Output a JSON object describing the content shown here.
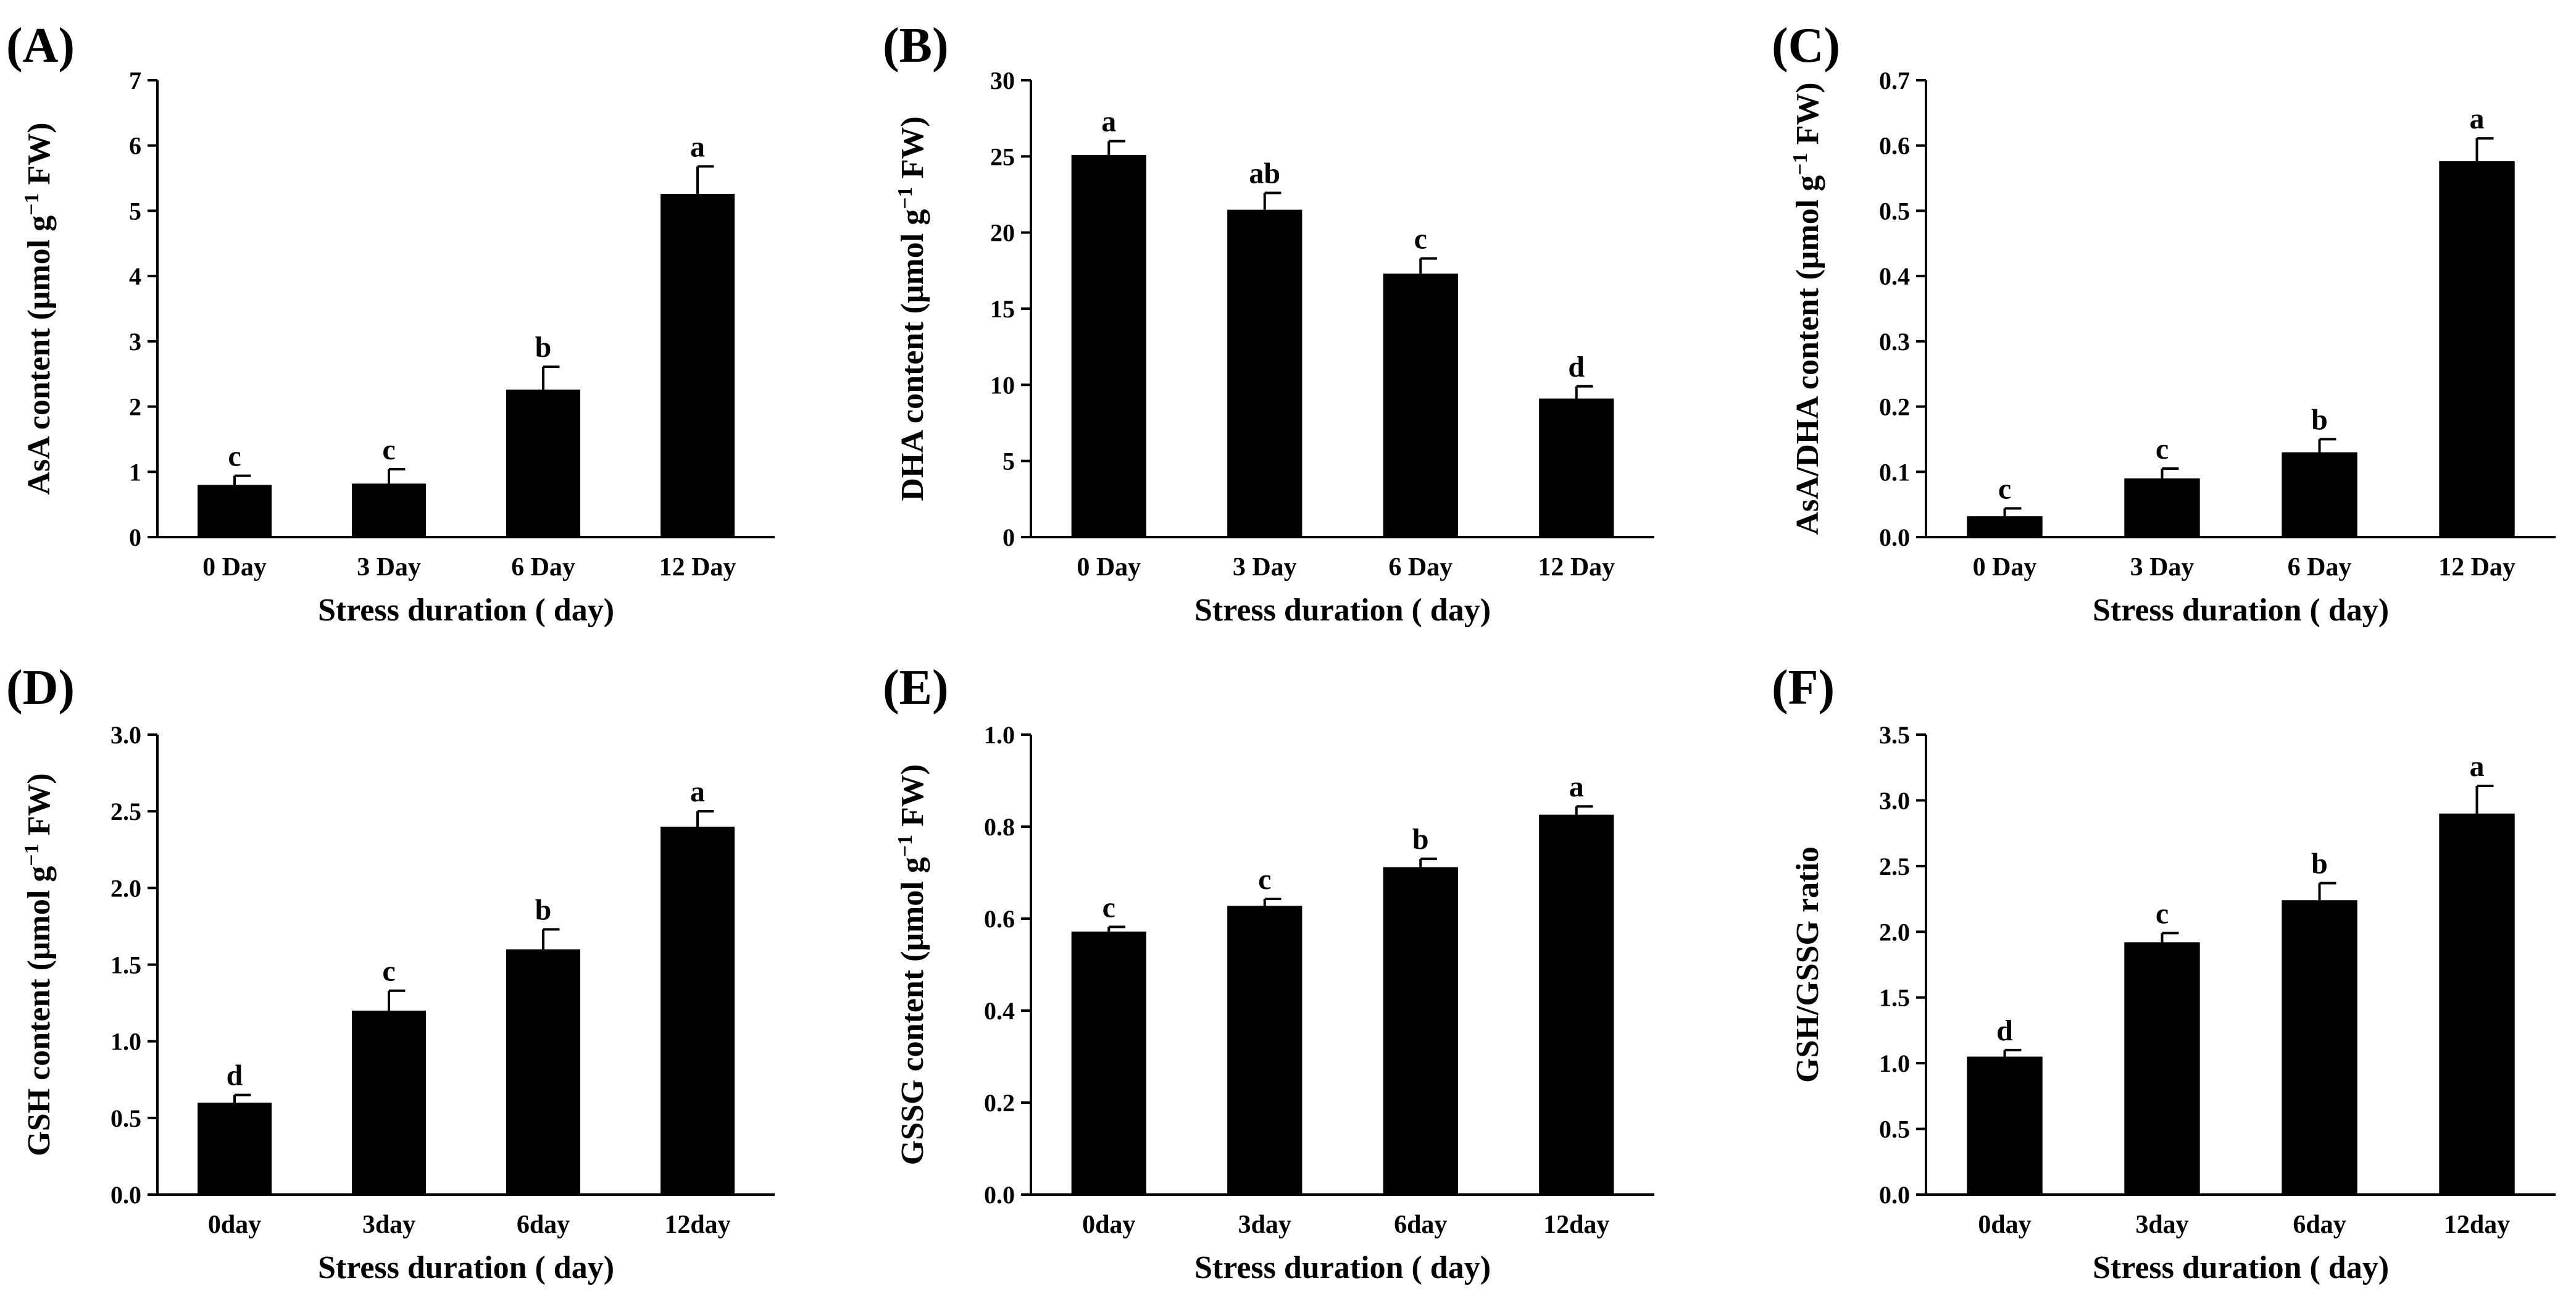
{
  "chart_data": [
    {
      "type": "bar",
      "panel_label": "(A)",
      "ylabel_main": "AsA content (μmol g",
      "ylabel_sup": "−1",
      "ylabel_tail": " FW)",
      "xlabel": "Stress duration ( day)",
      "categories": [
        "0 Day",
        "3 Day",
        "6 Day",
        "12 Day"
      ],
      "values": [
        0.8,
        0.82,
        2.26,
        5.26
      ],
      "errors": [
        0.14,
        0.22,
        0.35,
        0.42
      ],
      "significance": [
        "c",
        "c",
        "b",
        "a"
      ],
      "ylim": [
        0,
        7
      ],
      "yticks": [
        "0",
        "1",
        "2",
        "3",
        "4",
        "5",
        "6",
        "7"
      ]
    },
    {
      "type": "bar",
      "panel_label": "(B)",
      "ylabel_main": "DHA content (μmol g",
      "ylabel_sup": "−1",
      "ylabel_tail": " FW)",
      "xlabel": "Stress duration ( day)",
      "categories": [
        "0 Day",
        "3 Day",
        "6 Day",
        "12 Day"
      ],
      "values": [
        25.1,
        21.5,
        17.3,
        9.1
      ],
      "errors": [
        0.9,
        1.1,
        1.0,
        0.8
      ],
      "significance": [
        "a",
        "ab",
        "c",
        "d"
      ],
      "ylim": [
        0,
        30
      ],
      "yticks": [
        "0",
        "5",
        "10",
        "15",
        "20",
        "25",
        "30"
      ]
    },
    {
      "type": "bar",
      "panel_label": "(C)",
      "ylabel_main": "AsA/DHA content (μmol g",
      "ylabel_sup": "−1",
      "ylabel_tail": " FW)",
      "xlabel": "Stress duration ( day)",
      "categories": [
        "0 Day",
        "3 Day",
        "6 Day",
        "12 Day"
      ],
      "values": [
        0.032,
        0.09,
        0.13,
        0.576
      ],
      "errors": [
        0.012,
        0.015,
        0.02,
        0.035
      ],
      "significance": [
        "c",
        "c",
        "b",
        "a"
      ],
      "ylim": [
        0,
        0.7
      ],
      "yticks": [
        "0.0",
        "0.1",
        "0.2",
        "0.3",
        "0.4",
        "0.5",
        "0.6",
        "0.7"
      ]
    },
    {
      "type": "bar",
      "panel_label": "(D)",
      "ylabel_main": "GSH content (μmol g",
      "ylabel_sup": "−1",
      "ylabel_tail": " FW)",
      "xlabel": "Stress duration ( day)",
      "categories": [
        "0day",
        "3day",
        "6day",
        "12day"
      ],
      "values": [
        0.6,
        1.2,
        1.6,
        2.4
      ],
      "errors": [
        0.05,
        0.13,
        0.13,
        0.1
      ],
      "significance": [
        "d",
        "c",
        "b",
        "a"
      ],
      "ylim": [
        0,
        3.0
      ],
      "yticks": [
        "0.0",
        "0.5",
        "1.0",
        "1.5",
        "2.0",
        "2.5",
        "3.0"
      ]
    },
    {
      "type": "bar",
      "panel_label": "(E)",
      "ylabel_main": "GSSG content (μmol g",
      "ylabel_sup": "−1",
      "ylabel_tail": " FW)",
      "xlabel": "Stress duration ( day)",
      "categories": [
        "0day",
        "3day",
        "6day",
        "12day"
      ],
      "values": [
        0.572,
        0.628,
        0.712,
        0.826
      ],
      "errors": [
        0.01,
        0.015,
        0.018,
        0.018
      ],
      "significance": [
        "c",
        "c",
        "b",
        "a"
      ],
      "ylim": [
        0,
        1.0
      ],
      "yticks": [
        "0.0",
        "0.2",
        "0.4",
        "0.6",
        "0.8",
        "1.0"
      ]
    },
    {
      "type": "bar",
      "panel_label": "(F)",
      "ylabel_main": "GSH/GSSG ratio",
      "ylabel_sup": "",
      "ylabel_tail": "",
      "xlabel": "Stress duration ( day)",
      "categories": [
        "0day",
        "3day",
        "6day",
        "12day"
      ],
      "values": [
        1.05,
        1.92,
        2.24,
        2.9
      ],
      "errors": [
        0.05,
        0.07,
        0.13,
        0.21
      ],
      "significance": [
        "d",
        "c",
        "b",
        "a"
      ],
      "ylim": [
        0,
        3.5
      ],
      "yticks": [
        "0.0",
        "0.5",
        "1.0",
        "1.5",
        "2.0",
        "2.5",
        "3.0",
        "3.5"
      ]
    }
  ]
}
